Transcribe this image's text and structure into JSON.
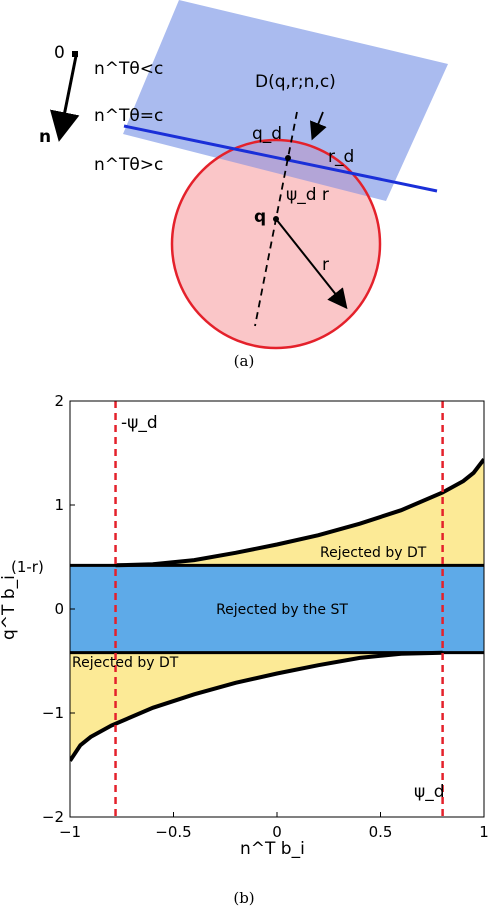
{
  "panel_a": {
    "origin_label": "0",
    "normal_label": "n",
    "ineq_less": "n^Tθ<c",
    "ineq_equal": "n^Tθ=c",
    "ineq_greater": "n^Tθ>c",
    "region_label": "D(q,r;n,c)",
    "center_label": "q",
    "projection_label": "q_d",
    "radius_label": "r",
    "reduced_radius_label": "r_d",
    "distance_label": "ψ_d r",
    "caption": "(a)",
    "colors": {
      "halfspace": "#aabbef",
      "ball": "#fac6c8",
      "intersection": "#b3a5d7",
      "hyperplane": "#1a2fd8",
      "ball_edge": "#e4212b"
    }
  },
  "caption_b": "(b)",
  "chart_data": {
    "type": "area",
    "xlabel": "n^T b_i",
    "ylabel": "q^T b_i",
    "xlim": [
      -1,
      1
    ],
    "ylim": [
      -2,
      2
    ],
    "xticks": [
      "-1",
      "-0.5",
      "0",
      "0.5",
      "1"
    ],
    "yticks": [
      "-2",
      "-1",
      "0",
      "1",
      "2"
    ],
    "ytick_extra": "(1-r)",
    "band": {
      "lower": -0.42,
      "upper": 0.42,
      "label": "Rejected by the ST",
      "color": "#5eaae8"
    },
    "upper_curve": {
      "label": "Rejected by DT",
      "color": "#fcea96",
      "x": [
        -0.78,
        -0.6,
        -0.4,
        -0.2,
        0.0,
        0.2,
        0.4,
        0.6,
        0.8,
        0.9,
        0.95,
        1.0
      ],
      "y": [
        0.42,
        0.43,
        0.47,
        0.54,
        0.62,
        0.71,
        0.82,
        0.95,
        1.12,
        1.23,
        1.31,
        1.44
      ]
    },
    "lower_curve": {
      "label": "Rejected by DT",
      "color": "#fcea96",
      "x": [
        -1.0,
        -0.95,
        -0.9,
        -0.8,
        -0.6,
        -0.4,
        -0.2,
        0.0,
        0.2,
        0.4,
        0.6,
        0.8
      ],
      "y": [
        -1.46,
        -1.31,
        -1.23,
        -1.12,
        -0.95,
        -0.82,
        -0.71,
        -0.62,
        -0.54,
        -0.47,
        -0.43,
        -0.42
      ]
    },
    "vlines": [
      {
        "x": -0.78,
        "label": "-ψ_d",
        "color": "#e4212b"
      },
      {
        "x": 0.8,
        "label": "ψ_d",
        "color": "#e4212b"
      }
    ]
  }
}
